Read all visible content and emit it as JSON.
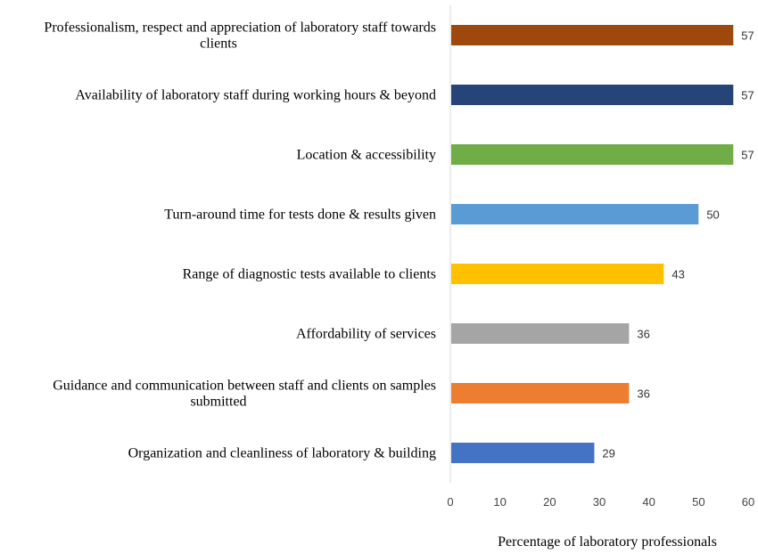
{
  "chart_data": {
    "type": "bar",
    "orientation": "horizontal",
    "title": "",
    "xlabel": "Percentage of laboratory professionals",
    "ylabel": "",
    "xlim": [
      0,
      60
    ],
    "xticks": [
      0,
      10,
      20,
      30,
      40,
      50,
      60
    ],
    "grid": false,
    "categories": [
      [
        "Professionalism, respect and appreciation of laboratory staff towards",
        "clients"
      ],
      [
        "Availability of laboratory staff during working hours & beyond"
      ],
      [
        "Location & accessibility"
      ],
      [
        "Turn-around time for tests done & results given"
      ],
      [
        "Range of diagnostic tests available to clients"
      ],
      [
        "Affordability of services"
      ],
      [
        "Guidance and communication between staff and clients on samples",
        "submitted"
      ],
      [
        "Organization and cleanliness of laboratory & building"
      ]
    ],
    "values": [
      57,
      57,
      57,
      50,
      43,
      36,
      36,
      29
    ],
    "colors": [
      "#9E480E",
      "#264478",
      "#70AD47",
      "#5B9BD5",
      "#FFC000",
      "#A5A5A5",
      "#ED7D31",
      "#4472C4"
    ]
  }
}
